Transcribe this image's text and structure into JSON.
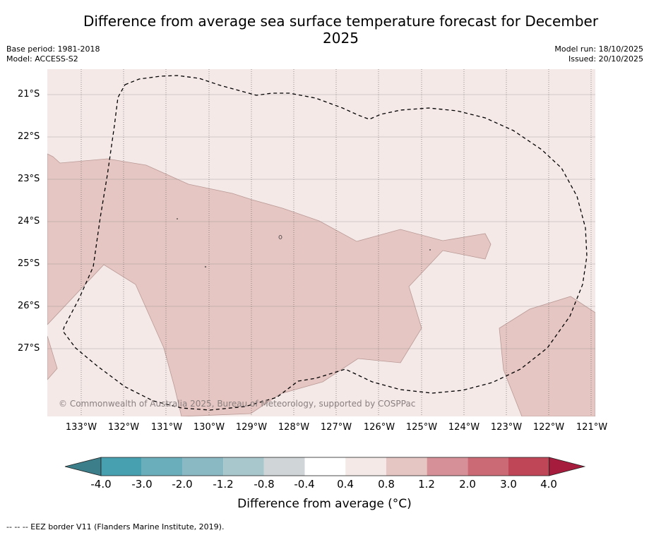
{
  "title": "Difference from average sea surface temperature forecast for December 2025",
  "meta": {
    "base_period": "Base period: 1981-2018",
    "model": "Model: ACCESS-S2",
    "model_run": "Model run: 18/10/2025",
    "issued": "Issued: 20/10/2025"
  },
  "map": {
    "latitude_labels": [
      "21°S",
      "22°S",
      "23°S",
      "24°S",
      "25°S",
      "26°S",
      "27°S"
    ],
    "longitude_labels": [
      "133°W",
      "132°W",
      "131°W",
      "130°W",
      "129°W",
      "128°W",
      "127°W",
      "126°W",
      "125°W",
      "124°W",
      "123°W",
      "122°W",
      "121°W"
    ],
    "copyright": "© Commonwealth of Australia 2025, Bureau of Meteorology, supported by COSPPac",
    "colors": {
      "background_band": "#f5e9e8",
      "warm_band": "#e6c6c2",
      "contour_line": "#b89a96",
      "grid_line": "#8c8c8c",
      "eez_line": "#000000"
    }
  },
  "colorbar": {
    "tick_labels": [
      "-4.0",
      "-3.0",
      "-2.0",
      "-1.2",
      "-0.8",
      "-0.4",
      "0.4",
      "0.8",
      "1.2",
      "2.0",
      "3.0",
      "4.0"
    ],
    "colors": [
      "#3c7f8b",
      "#47a0b0",
      "#6aadbb",
      "#8ab8c3",
      "#a8c7cc",
      "#d0d5d8",
      "#ffffff",
      "#f5e9e8",
      "#e6c6c2",
      "#d69098",
      "#cb6a74",
      "#bf4657",
      "#a61c3c"
    ],
    "label": "Difference from average (°C)"
  },
  "footnote": "--  --  -- EEZ border V11 (Flanders Marine Institute, 2019)."
}
